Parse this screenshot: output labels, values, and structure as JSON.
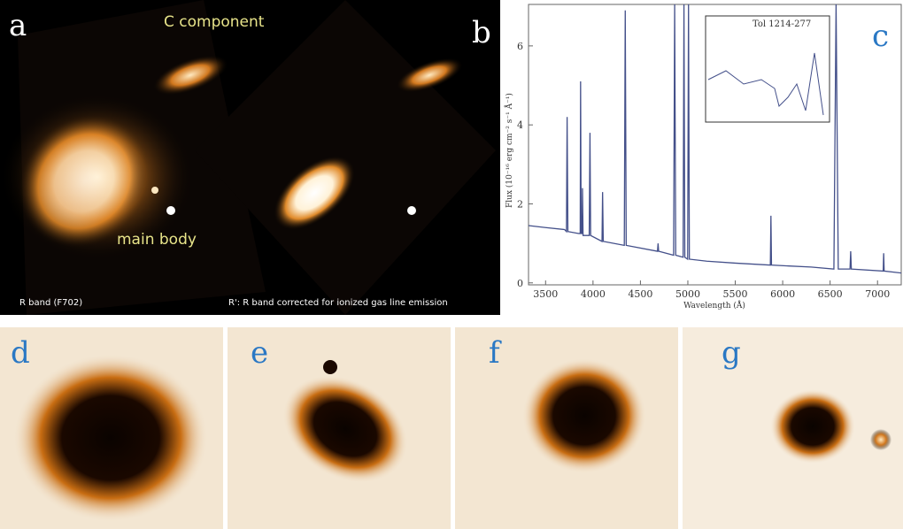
{
  "labels": [
    "a",
    "b",
    "c",
    "d",
    "e",
    "f",
    "g"
  ],
  "annotations": {
    "c_component": "C component",
    "main_body": "main body",
    "r_band": "R band (F702)",
    "r_prime": "R': R band corrected for ionized gas line emission"
  },
  "chart_data": {
    "type": "line",
    "title": "Tol 1214-277",
    "x_label": "Wavelength (Å)",
    "y_label": "Flux (10⁻¹⁶ erg cm⁻² s⁻¹ Å⁻¹)",
    "x": [
      3320,
      3500,
      3700,
      3720,
      3727,
      3735,
      3850,
      3865,
      3869,
      3875,
      3885,
      3889,
      3895,
      3960,
      3968,
      3975,
      4095,
      4101,
      4108,
      4330,
      4340,
      4350,
      4680,
      4686,
      4692,
      4850,
      4861,
      4872,
      4950,
      4959,
      4968,
      4998,
      5007,
      5016,
      5200,
      5500,
      5870,
      5876,
      5882,
      6300,
      6540,
      6563,
      6586,
      6710,
      6717,
      6724,
      7060,
      7065,
      7070,
      7250
    ],
    "series": [
      {
        "color": "#44508a",
        "values": [
          1.45,
          1.4,
          1.35,
          1.3,
          4.2,
          1.3,
          1.25,
          1.25,
          5.1,
          1.25,
          1.25,
          2.4,
          1.2,
          1.2,
          3.8,
          1.2,
          1.05,
          2.3,
          1.05,
          0.95,
          6.9,
          0.95,
          0.8,
          1.0,
          0.8,
          0.7,
          7.05,
          0.7,
          0.65,
          7.05,
          0.65,
          0.6,
          7.05,
          0.6,
          0.55,
          0.5,
          0.45,
          1.7,
          0.45,
          0.4,
          0.35,
          7.05,
          0.35,
          0.35,
          0.8,
          0.35,
          0.3,
          0.75,
          0.3,
          0.25
        ]
      }
    ],
    "xlim": [
      3320,
      7250
    ],
    "xticks": [
      3500,
      4000,
      4500,
      5000,
      5500,
      6000,
      6500,
      7000
    ],
    "ylim": [
      -0.05,
      7.05
    ],
    "yticks": [
      0,
      2,
      4,
      6
    ]
  }
}
